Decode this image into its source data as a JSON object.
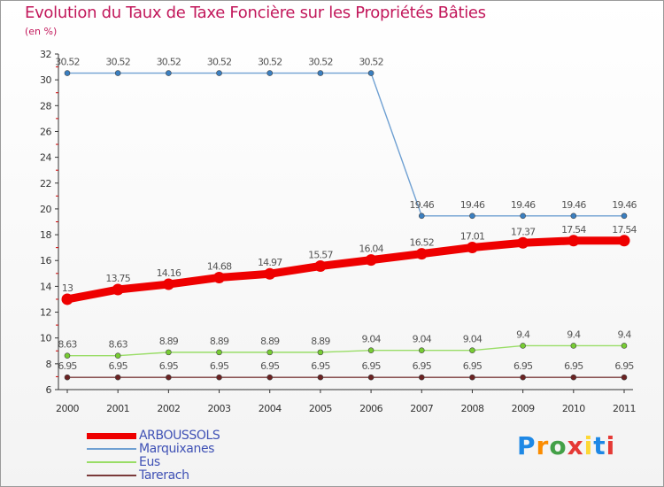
{
  "header": {
    "title": "Evolution du Taux de Taxe Foncière sur les Propriétés Bâties",
    "subtitle": "(en %)"
  },
  "chart_data": {
    "type": "line",
    "title": "Evolution du Taux de Taxe Foncière sur les Propriétés Bâties",
    "ylabel": "(en %)",
    "xlabel": "",
    "ylim": [
      6,
      32
    ],
    "yticks": [
      6,
      8,
      10,
      12,
      14,
      16,
      18,
      20,
      22,
      24,
      26,
      28,
      30,
      32
    ],
    "x": [
      "2000",
      "2001",
      "2002",
      "2003",
      "2004",
      "2005",
      "2006",
      "2007",
      "2008",
      "2009",
      "2010",
      "2011"
    ],
    "series": [
      {
        "name": "ARBOUSSOLS",
        "color": "#ee0000",
        "point_color": "#ee0000",
        "emphasis": "bold",
        "values": [
          13,
          13.75,
          14.16,
          14.68,
          14.97,
          15.57,
          16.04,
          16.52,
          17.01,
          17.37,
          17.54,
          17.54
        ],
        "labels": [
          "13",
          "13.75",
          "14.16",
          "14.68",
          "14.97",
          "15.57",
          "16.04",
          "16.52",
          "17.01",
          "17.37",
          "17.54",
          "17.54"
        ]
      },
      {
        "name": "Marquixanes",
        "color": "#6fa0d2",
        "point_color": "#3a7fc1",
        "emphasis": "normal",
        "values": [
          30.52,
          30.52,
          30.52,
          30.52,
          30.52,
          30.52,
          30.52,
          19.46,
          19.46,
          19.46,
          19.46,
          19.46
        ],
        "labels": [
          "30.52",
          "30.52",
          "30.52",
          "30.52",
          "30.52",
          "30.52",
          "30.52",
          "19.46",
          "19.46",
          "19.46",
          "19.46",
          "19.46"
        ]
      },
      {
        "name": "Eus",
        "color": "#99dd66",
        "point_color": "#77cc33",
        "emphasis": "normal",
        "values": [
          8.63,
          8.63,
          8.89,
          8.89,
          8.89,
          8.89,
          9.04,
          9.04,
          9.04,
          9.4,
          9.4,
          9.4
        ],
        "labels": [
          "8.63",
          "8.63",
          "8.89",
          "8.89",
          "8.89",
          "8.89",
          "9.04",
          "9.04",
          "9.04",
          "9.4",
          "9.4",
          "9.4"
        ]
      },
      {
        "name": "Tarerach",
        "color": "#7a3a3a",
        "point_color": "#6b2222",
        "emphasis": "normal",
        "values": [
          6.95,
          6.95,
          6.95,
          6.95,
          6.95,
          6.95,
          6.95,
          6.95,
          6.95,
          6.95,
          6.95,
          6.95
        ],
        "labels": [
          "6.95",
          "6.95",
          "6.95",
          "6.95",
          "6.95",
          "6.95",
          "6.95",
          "6.95",
          "6.95",
          "6.95",
          "6.95",
          "6.95"
        ]
      }
    ],
    "legend": {
      "position": "bottom-left"
    },
    "grid": false
  },
  "logo": {
    "letters": [
      "P",
      "r",
      "o",
      "x",
      "i",
      "t",
      "i"
    ]
  }
}
